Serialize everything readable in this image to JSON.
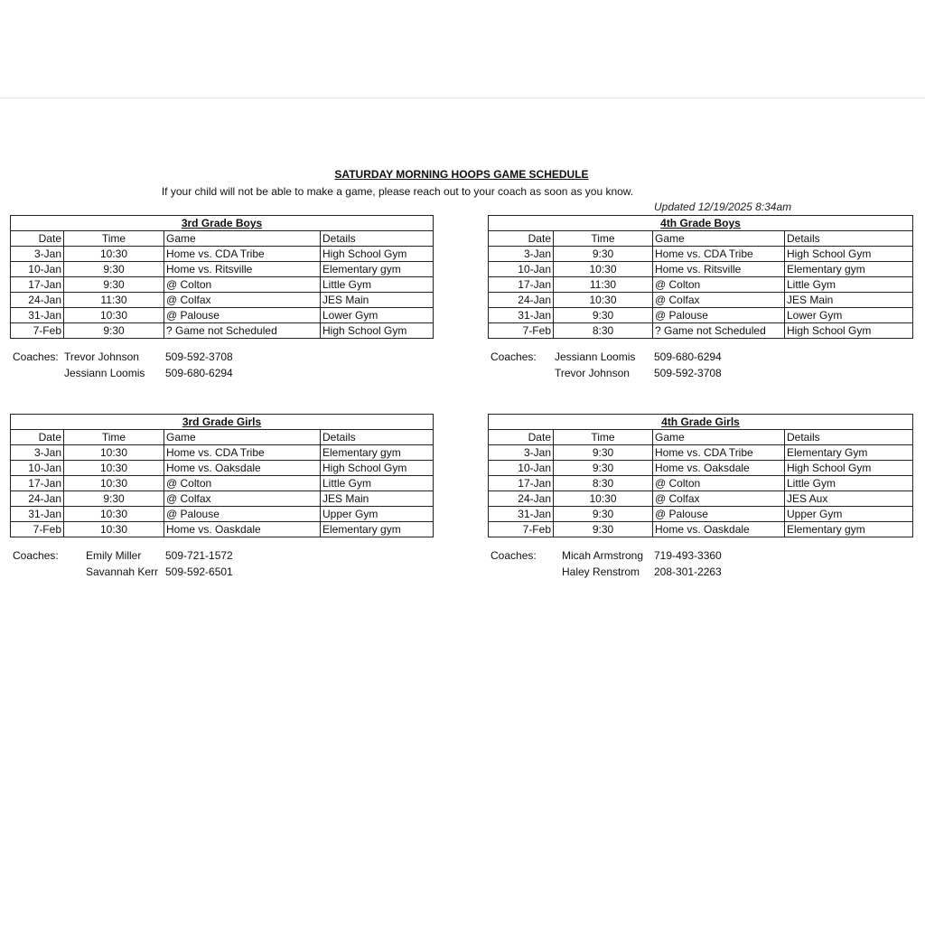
{
  "header": {
    "title": "SATURDAY MORNING HOOPS GAME SCHEDULE",
    "subtitle": "If your child will not be able to make a game, please reach out to your coach as soon as you know.",
    "updated": "Updated 12/19/2025 8:34am"
  },
  "columns": [
    "Date",
    "Time",
    "Game",
    "Details"
  ],
  "coaches_label": "Coaches:",
  "tables": [
    {
      "title": "3rd Grade Boys",
      "rows": [
        [
          "3-Jan",
          "10:30",
          "Home vs. CDA Tribe",
          "High School Gym"
        ],
        [
          "10-Jan",
          "9:30",
          "Home vs. Ritsville",
          "Elementary gym"
        ],
        [
          "17-Jan",
          "9:30",
          "@ Colton",
          "Little Gym"
        ],
        [
          "24-Jan",
          "11:30",
          "@ Colfax",
          "JES Main"
        ],
        [
          "31-Jan",
          "10:30",
          "@ Palouse",
          "Lower Gym"
        ],
        [
          "7-Feb",
          "9:30",
          "? Game not Scheduled",
          "High School Gym"
        ]
      ],
      "coaches": [
        [
          "Trevor Johnson",
          "509-592-3708"
        ],
        [
          "Jessiann Loomis",
          "509-680-6294"
        ]
      ]
    },
    {
      "title": "4th Grade Boys",
      "rows": [
        [
          "3-Jan",
          "9:30",
          "Home vs. CDA Tribe",
          "High School Gym"
        ],
        [
          "10-Jan",
          "10:30",
          "Home vs. Ritsville",
          "Elementary gym"
        ],
        [
          "17-Jan",
          "11:30",
          "@ Colton",
          "Little Gym"
        ],
        [
          "24-Jan",
          "10:30",
          "@ Colfax",
          "JES Main"
        ],
        [
          "31-Jan",
          "9:30",
          "@ Palouse",
          "Lower Gym"
        ],
        [
          "7-Feb",
          "8:30",
          "? Game not Scheduled",
          "High School Gym"
        ]
      ],
      "coaches": [
        [
          "Jessiann Loomis",
          "509-680-6294"
        ],
        [
          "Trevor Johnson",
          "509-592-3708"
        ]
      ]
    },
    {
      "title": "3rd Grade Girls",
      "rows": [
        [
          "3-Jan",
          "10:30",
          "Home vs. CDA Tribe",
          "Elementary gym"
        ],
        [
          "10-Jan",
          "10:30",
          "Home vs. Oaksdale",
          "High School Gym"
        ],
        [
          "17-Jan",
          "10:30",
          "@ Colton",
          "Little Gym"
        ],
        [
          "24-Jan",
          "9:30",
          "@ Colfax",
          "JES Main"
        ],
        [
          "31-Jan",
          "10:30",
          "@ Palouse",
          "Upper Gym"
        ],
        [
          "7-Feb",
          "10:30",
          "Home vs. Oaskdale",
          "Elementary gym"
        ]
      ],
      "coaches": [
        [
          "Emily Miller",
          "509-721-1572"
        ],
        [
          "Savannah Kerr",
          "509-592-6501"
        ]
      ]
    },
    {
      "title": "4th Grade Girls",
      "rows": [
        [
          "3-Jan",
          "9:30",
          "Home vs. CDA Tribe",
          "Elementary Gym"
        ],
        [
          "10-Jan",
          "9:30",
          "Home vs. Oaksdale",
          "High School Gym"
        ],
        [
          "17-Jan",
          "8:30",
          "@ Colton",
          "Little Gym"
        ],
        [
          "24-Jan",
          "10:30",
          "@ Colfax",
          "JES Aux"
        ],
        [
          "31-Jan",
          "9:30",
          "@ Palouse",
          "Upper Gym"
        ],
        [
          "7-Feb",
          "9:30",
          "Home vs. Oaskdale",
          "Elementary gym"
        ]
      ],
      "coaches": [
        [
          "Micah Armstrong",
          "719-493-3360"
        ],
        [
          "Haley Renstrom",
          "208-301-2263"
        ]
      ]
    }
  ]
}
